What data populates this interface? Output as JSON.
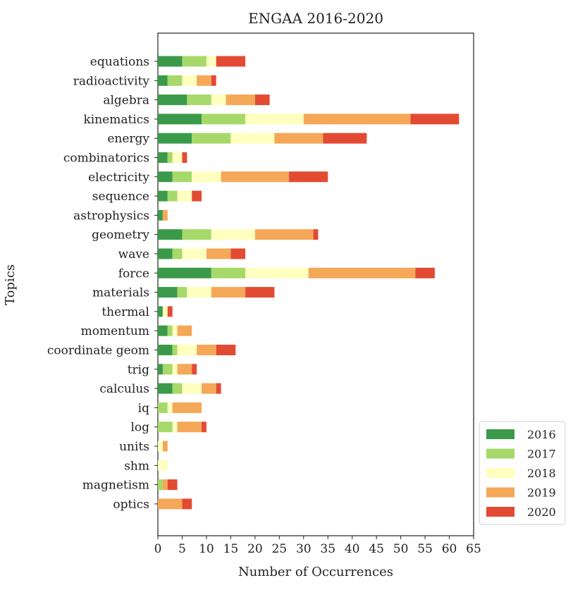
{
  "chart_data": {
    "type": "bar",
    "orientation": "horizontal",
    "stacked": true,
    "title": "ENGAA 2016-2020",
    "xlabel": "Number of Occurrences",
    "ylabel": "Topics",
    "xlim": [
      0,
      65
    ],
    "xticks": [
      0,
      5,
      10,
      15,
      20,
      25,
      30,
      35,
      40,
      45,
      50,
      55,
      60,
      65
    ],
    "grid": false,
    "legend_position": "lower-right",
    "categories": [
      "equations",
      "radioactivity",
      "algebra",
      "kinematics",
      "energy",
      "combinatorics",
      "electricity",
      "sequence",
      "astrophysics",
      "geometry",
      "wave",
      "force",
      "materials",
      "thermal",
      "momentum",
      "coordinate geom",
      "trig",
      "calculus",
      "iq",
      "log",
      "units",
      "shm",
      "magnetism",
      "optics"
    ],
    "series": [
      {
        "name": "2016",
        "color": "#3a9a4a",
        "values": [
          5,
          2,
          6,
          9,
          7,
          2,
          3,
          2,
          1,
          5,
          3,
          11,
          4,
          1,
          2,
          3,
          1,
          3,
          0,
          0,
          0,
          0,
          0,
          0
        ]
      },
      {
        "name": "2017",
        "color": "#a6d96a",
        "values": [
          5,
          3,
          5,
          9,
          8,
          1,
          4,
          2,
          0,
          6,
          2,
          7,
          2,
          0,
          1,
          1,
          2,
          2,
          2,
          3,
          0,
          0,
          1,
          0
        ]
      },
      {
        "name": "2018",
        "color": "#ffffbf",
        "values": [
          2,
          3,
          3,
          12,
          9,
          2,
          6,
          3,
          0,
          9,
          5,
          13,
          5,
          1,
          1,
          4,
          1,
          4,
          1,
          1,
          1,
          2,
          0,
          0
        ]
      },
      {
        "name": "2019",
        "color": "#f4a858",
        "values": [
          0,
          3,
          6,
          22,
          10,
          0,
          14,
          0,
          1,
          12,
          5,
          22,
          7,
          0,
          3,
          4,
          3,
          3,
          6,
          5,
          1,
          0,
          1,
          5
        ]
      },
      {
        "name": "2020",
        "color": "#e34a33",
        "values": [
          6,
          1,
          3,
          10,
          9,
          1,
          8,
          2,
          0,
          1,
          3,
          4,
          6,
          1,
          0,
          4,
          1,
          1,
          0,
          1,
          0,
          0,
          2,
          2
        ]
      }
    ]
  }
}
